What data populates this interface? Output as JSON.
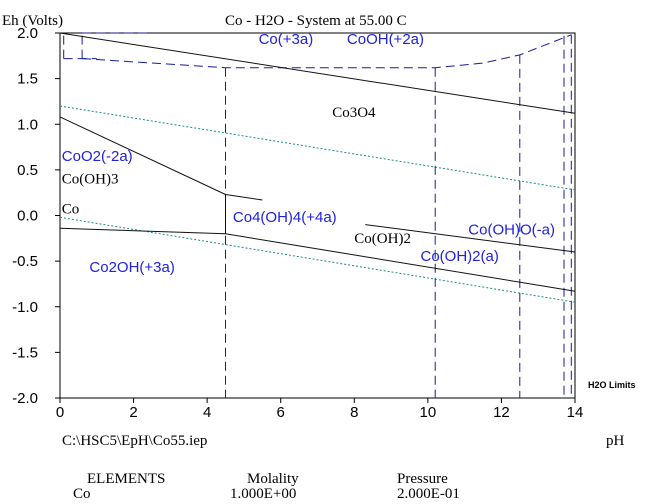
{
  "chart_data": {
    "type": "line",
    "title": "Co - H2O - System at 55.00 C",
    "ylabel": "Eh (Volts)",
    "xlabel": "pH",
    "xlim": [
      0,
      14
    ],
    "ylim": [
      -2.0,
      2.0
    ],
    "x_ticks": [
      "0",
      "2",
      "4",
      "6",
      "8",
      "10",
      "12",
      "14"
    ],
    "y_ticks": [
      "2.0",
      "1.5",
      "1.0",
      "0.5",
      "0.0",
      "-0.5",
      "-1.0",
      "-1.5",
      "-2.0"
    ],
    "water_limits_label": "H2O Limits",
    "colors": {
      "solid": "#1a1a9e",
      "aqueous": "#2020e0",
      "water_line": "#1a8a8a",
      "text": "#000000"
    },
    "water_lines": [
      {
        "x": [
          0,
          14
        ],
        "y": [
          1.2,
          0.28
        ]
      },
      {
        "x": [
          0,
          14
        ],
        "y": [
          -0.02,
          -0.95
        ]
      }
    ],
    "solid_boundaries": [
      {
        "x": [
          0,
          14
        ],
        "y": [
          2.0,
          1.12
        ]
      },
      {
        "x": [
          0,
          4.5
        ],
        "y": [
          1.08,
          0.23
        ]
      },
      {
        "x": [
          4.5,
          5.5
        ],
        "y": [
          0.23,
          0.17
        ]
      },
      {
        "x": [
          0,
          4.5
        ],
        "y": [
          -0.14,
          -0.2
        ]
      },
      {
        "x": [
          4.5,
          14
        ],
        "y": [
          -0.2,
          -0.83
        ]
      },
      {
        "x": [
          8.3,
          14
        ],
        "y": [
          -0.1,
          -0.4
        ]
      },
      {
        "x": [
          4.5,
          4.5
        ],
        "y": [
          0.23,
          -0.2
        ]
      }
    ],
    "aqueous_boundaries": [
      {
        "x": [
          0.1,
          0.1
        ],
        "y": [
          1.72,
          2.0
        ]
      },
      {
        "x": [
          0.1,
          1.0
        ],
        "y": [
          1.72,
          1.72
        ]
      },
      {
        "x": [
          0.6,
          0.6
        ],
        "y": [
          1.72,
          2.0
        ]
      },
      {
        "x": [
          0.6,
          2.5
        ],
        "y": [
          2.0,
          2.0
        ]
      },
      {
        "x": [
          0.6,
          4.5,
          10.2,
          11.5,
          12.5,
          13.9
        ],
        "y": [
          1.72,
          1.62,
          1.62,
          1.67,
          1.76,
          1.98
        ]
      },
      {
        "x": [
          4.5,
          4.5
        ],
        "y": [
          1.62,
          -2.0
        ]
      },
      {
        "x": [
          10.2,
          10.2
        ],
        "y": [
          1.62,
          -2.0
        ]
      },
      {
        "x": [
          12.5,
          12.5
        ],
        "y": [
          1.76,
          -2.0
        ]
      },
      {
        "x": [
          13.7,
          13.7
        ],
        "y": [
          1.97,
          -2.0
        ]
      },
      {
        "x": [
          13.9,
          13.9
        ],
        "y": [
          1.98,
          -2.0
        ]
      }
    ],
    "region_labels": [
      {
        "text": "Co(+3a)",
        "x": 5.4,
        "y": 1.88,
        "kind": "aqueous"
      },
      {
        "text": "CoOH(+2a)",
        "x": 7.8,
        "y": 1.88,
        "kind": "aqueous"
      },
      {
        "text": "Co3O4",
        "x": 7.4,
        "y": 1.08,
        "kind": "solid"
      },
      {
        "text": "CoO2(-2a)",
        "x": 0.05,
        "y": 0.6,
        "kind": "aqueous"
      },
      {
        "text": "Co(OH)3",
        "x": 0.05,
        "y": 0.35,
        "kind": "solid"
      },
      {
        "text": "Co",
        "x": 0.05,
        "y": 0.02,
        "kind": "solid"
      },
      {
        "text": "Co4(OH)4(+4a)",
        "x": 4.7,
        "y": -0.07,
        "kind": "aqueous"
      },
      {
        "text": "Co(OH)2",
        "x": 8.0,
        "y": -0.3,
        "kind": "solid"
      },
      {
        "text": "Co(OH)O(-a)",
        "x": 11.1,
        "y": -0.21,
        "kind": "aqueous"
      },
      {
        "text": "Co(OH)2(a)",
        "x": 9.8,
        "y": -0.5,
        "kind": "aqueous"
      },
      {
        "text": "Co2OH(+3a)",
        "x": 0.8,
        "y": -0.62,
        "kind": "aqueous"
      }
    ]
  },
  "footer": {
    "file_path": "C:\\HSC5\\EpH\\Co55.iep",
    "elements_header": "ELEMENTS",
    "molality_header": "Molality",
    "pressure_header": "Pressure",
    "element": "Co",
    "molality": "1.000E+00",
    "pressure": "2.000E-01"
  }
}
